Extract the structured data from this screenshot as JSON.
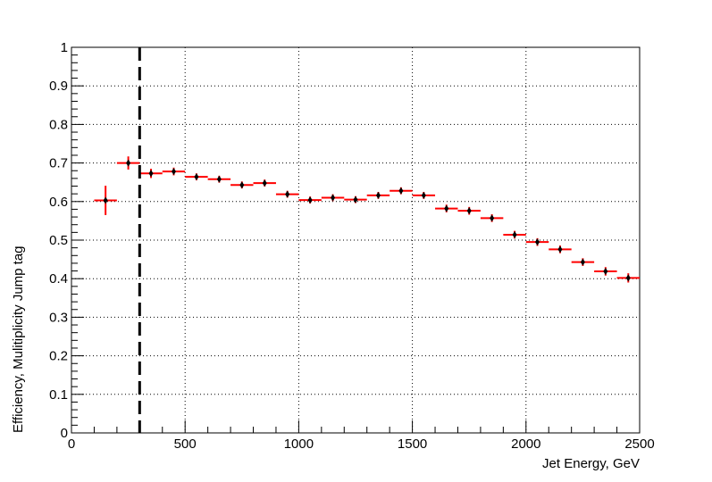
{
  "colors": {
    "marker": "#000000",
    "xerror": "#ff0000",
    "yerror": "#ff0000",
    "grid": "#000000",
    "cutline": "#000000",
    "background": "#ffffff"
  },
  "chart_data": {
    "type": "scatter",
    "title": "",
    "xlabel": "Jet Energy, GeV",
    "ylabel": "Efficiency, Mulitiplicity Jump tag",
    "xlim": [
      0,
      2500
    ],
    "ylim": [
      0,
      1
    ],
    "xticks": [
      0,
      500,
      1000,
      1500,
      2000,
      2500
    ],
    "xtick_labels": [
      "0",
      "500",
      "1000",
      "1500",
      "2000",
      "2500"
    ],
    "yticks": [
      0,
      0.1,
      0.2,
      0.3,
      0.4,
      0.5,
      0.6,
      0.7,
      0.8,
      0.9,
      1
    ],
    "ytick_labels": [
      "0",
      "0.1",
      "0.2",
      "0.3",
      "0.4",
      "0.5",
      "0.6",
      "0.7",
      "0.8",
      "0.9",
      "1"
    ],
    "grid": true,
    "vertical_cut_line": {
      "x": 300,
      "style": "dashed"
    },
    "series": [
      {
        "points": [
          {
            "x": 150,
            "xerr": 50,
            "y": 0.603,
            "yerr": 0.038
          },
          {
            "x": 250,
            "xerr": 50,
            "y": 0.7,
            "yerr": 0.017
          },
          {
            "x": 350,
            "xerr": 50,
            "y": 0.673,
            "yerr": 0.012
          },
          {
            "x": 450,
            "xerr": 50,
            "y": 0.678,
            "yerr": 0.01
          },
          {
            "x": 550,
            "xerr": 50,
            "y": 0.664,
            "yerr": 0.009
          },
          {
            "x": 650,
            "xerr": 50,
            "y": 0.658,
            "yerr": 0.009
          },
          {
            "x": 750,
            "xerr": 50,
            "y": 0.643,
            "yerr": 0.009
          },
          {
            "x": 850,
            "xerr": 50,
            "y": 0.648,
            "yerr": 0.009
          },
          {
            "x": 950,
            "xerr": 50,
            "y": 0.619,
            "yerr": 0.009
          },
          {
            "x": 1050,
            "xerr": 50,
            "y": 0.604,
            "yerr": 0.009
          },
          {
            "x": 1150,
            "xerr": 50,
            "y": 0.61,
            "yerr": 0.009
          },
          {
            "x": 1250,
            "xerr": 50,
            "y": 0.605,
            "yerr": 0.009
          },
          {
            "x": 1350,
            "xerr": 50,
            "y": 0.616,
            "yerr": 0.009
          },
          {
            "x": 1450,
            "xerr": 50,
            "y": 0.628,
            "yerr": 0.009
          },
          {
            "x": 1550,
            "xerr": 50,
            "y": 0.616,
            "yerr": 0.009
          },
          {
            "x": 1650,
            "xerr": 50,
            "y": 0.582,
            "yerr": 0.01
          },
          {
            "x": 1750,
            "xerr": 50,
            "y": 0.576,
            "yerr": 0.01
          },
          {
            "x": 1850,
            "xerr": 50,
            "y": 0.557,
            "yerr": 0.01
          },
          {
            "x": 1950,
            "xerr": 50,
            "y": 0.514,
            "yerr": 0.01
          },
          {
            "x": 2050,
            "xerr": 50,
            "y": 0.495,
            "yerr": 0.01
          },
          {
            "x": 2150,
            "xerr": 50,
            "y": 0.476,
            "yerr": 0.01
          },
          {
            "x": 2250,
            "xerr": 50,
            "y": 0.443,
            "yerr": 0.01
          },
          {
            "x": 2350,
            "xerr": 50,
            "y": 0.419,
            "yerr": 0.011
          },
          {
            "x": 2450,
            "xerr": 50,
            "y": 0.402,
            "yerr": 0.012
          }
        ]
      }
    ]
  }
}
